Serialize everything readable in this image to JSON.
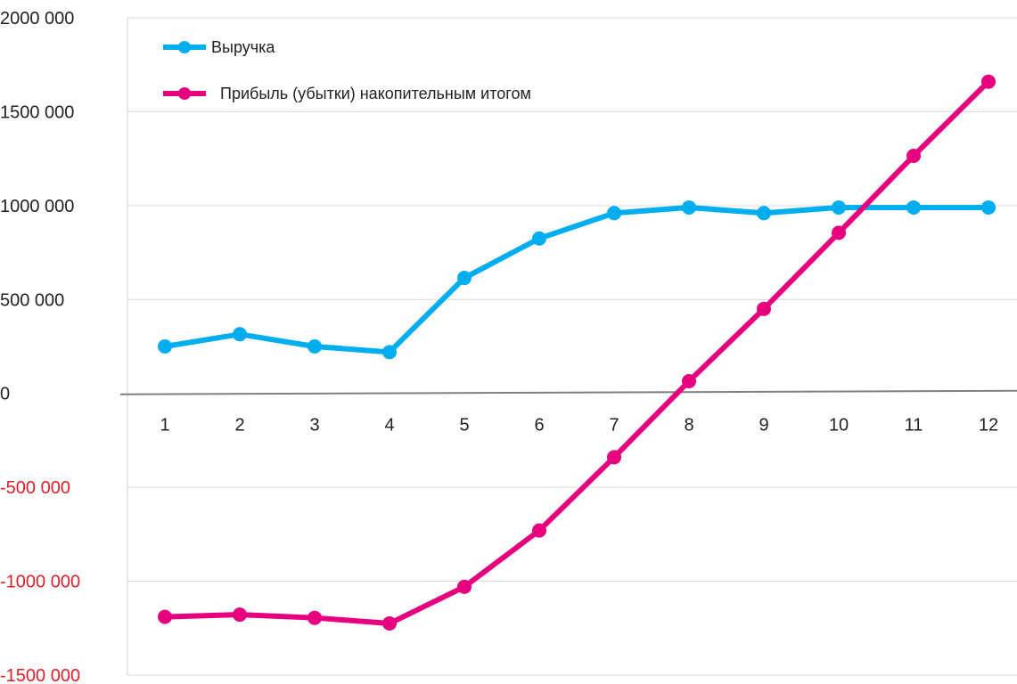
{
  "chart_data": {
    "type": "line",
    "categories": [
      "1",
      "2",
      "3",
      "4",
      "5",
      "6",
      "7",
      "8",
      "9",
      "10",
      "11",
      "12"
    ],
    "series": [
      {
        "name": "Выручка",
        "color": "#00aeef",
        "values": [
          250000,
          315000,
          250000,
          220000,
          615000,
          825000,
          960000,
          990000,
          960000,
          990000,
          990000,
          990000
        ]
      },
      {
        "name": "Прибыль (убытки) накопительным итогом",
        "color": "#e6007e",
        "values": [
          -1190000,
          -1178000,
          -1195000,
          -1225000,
          -1030000,
          -730000,
          -340000,
          65000,
          450000,
          855000,
          1265000,
          1660000
        ]
      }
    ],
    "ylim": [
      -1500000,
      2000000
    ],
    "yticks": [
      {
        "value": 2000000,
        "label": "2000 000"
      },
      {
        "value": 1500000,
        "label": "1500 000"
      },
      {
        "value": 1000000,
        "label": "1000 000"
      },
      {
        "value": 500000,
        "label": "500 000"
      },
      {
        "value": 0,
        "label": "0"
      },
      {
        "value": -500000,
        "label": "-500 000"
      },
      {
        "value": -1000000,
        "label": "-1000 000"
      },
      {
        "value": -1500000,
        "label": "-1500 000"
      }
    ],
    "positive_tick_color": "#222222",
    "negative_tick_color": "#e41e26",
    "gridlines": true,
    "legend_position": "top-left"
  }
}
